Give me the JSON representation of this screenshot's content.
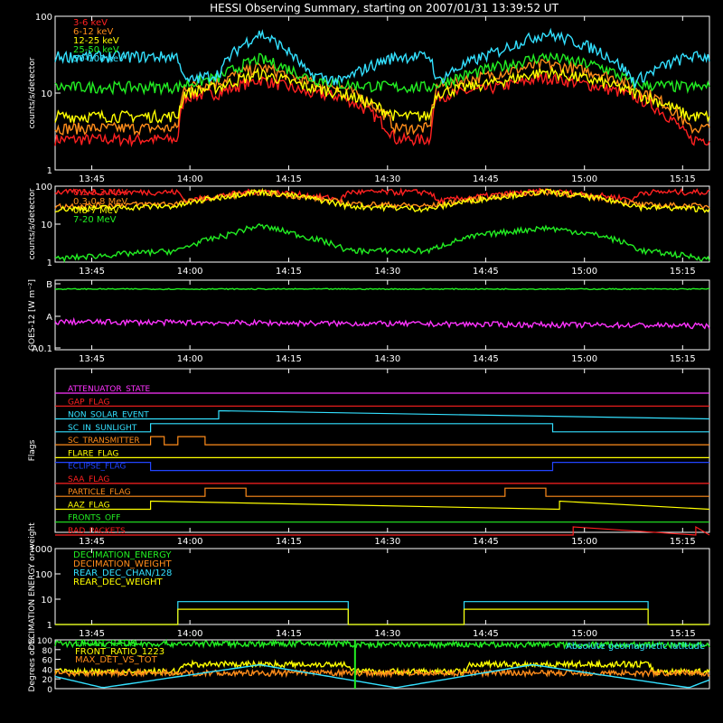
{
  "title": "HESSI Observing Summary, starting on 2007/01/31 13:39:52 UT",
  "colors": {
    "background": "#000000",
    "axes": "#ffffff",
    "red": "#ff2020",
    "orange": "#ff8c1a",
    "yellow": "#ffff00",
    "green": "#22ee22",
    "cyan": "#33e0ff",
    "magenta": "#ff33ff",
    "blue": "#2244ff"
  },
  "time_ticks": [
    "13:45",
    "14:00",
    "14:15",
    "14:30",
    "14:45",
    "15:00",
    "15:15"
  ],
  "chart_data": [
    {
      "id": "low-energy-rates",
      "type": "line",
      "ylabel": "counts/s/detector",
      "yscale": "log",
      "ylim": [
        1,
        100
      ],
      "y_tick_labels": [
        "1",
        "10",
        "100"
      ],
      "x_tick_labels": [
        "13:45",
        "14:00",
        "14:15",
        "14:30",
        "14:45",
        "15:00",
        "15:15"
      ],
      "xlim_minutes": [
        0,
        96
      ],
      "legend": [
        "3-6 keV",
        "6-12 keV",
        "12-25 keV",
        "25-50 keV",
        "50-100 keV"
      ],
      "legend_placement": "top-left",
      "series": [
        {
          "name": "3-6 keV",
          "color": "#ff2020",
          "x": [
            0,
            18,
            19,
            24,
            30,
            37,
            42,
            50,
            55,
            56,
            65,
            72,
            80,
            85,
            93,
            96
          ],
          "values": [
            2.5,
            2.5,
            9,
            10,
            15,
            10,
            9,
            2.5,
            2.5,
            9,
            12,
            16,
            12,
            9,
            2.5,
            2.5
          ]
        },
        {
          "name": "6-12 keV",
          "color": "#ff8c1a",
          "x": [
            0,
            18,
            19,
            24,
            30,
            37,
            42,
            50,
            55,
            56,
            65,
            72,
            80,
            85,
            93,
            96
          ],
          "values": [
            3.5,
            3.5,
            12,
            14,
            22,
            14,
            12,
            3.5,
            3.5,
            12,
            18,
            24,
            18,
            12,
            3.5,
            3.5
          ]
        },
        {
          "name": "12-25 keV",
          "color": "#ffff00",
          "x": [
            0,
            18,
            19,
            24,
            30,
            37,
            42,
            50,
            55,
            56,
            65,
            72,
            80,
            85,
            93,
            96
          ],
          "values": [
            5,
            5,
            10,
            12,
            18,
            12,
            10,
            5,
            5,
            10,
            14,
            19,
            14,
            10,
            5,
            5
          ]
        },
        {
          "name": "25-50 keV",
          "color": "#22ee22",
          "x": [
            0,
            18,
            19,
            24,
            30,
            37,
            42,
            50,
            55,
            56,
            65,
            72,
            80,
            85,
            93,
            96
          ],
          "values": [
            12,
            12,
            13,
            16,
            28,
            16,
            13,
            12,
            12,
            13,
            22,
            30,
            22,
            13,
            12,
            12
          ]
        },
        {
          "name": "50-100 keV",
          "color": "#33e0ff",
          "x": [
            0,
            18,
            19,
            24,
            30,
            37,
            42,
            50,
            55,
            56,
            65,
            72,
            80,
            85,
            93,
            96
          ],
          "values": [
            30,
            30,
            14,
            18,
            60,
            18,
            14,
            30,
            30,
            14,
            35,
            60,
            35,
            14,
            30,
            30
          ]
        }
      ]
    },
    {
      "id": "high-energy-rates",
      "type": "line",
      "ylabel": "counts/s/detector",
      "yscale": "log",
      "ylim": [
        1,
        100
      ],
      "y_tick_labels": [
        "1",
        "10",
        "100"
      ],
      "x_tick_labels": [
        "13:45",
        "14:00",
        "14:15",
        "14:30",
        "14:45",
        "15:00",
        "15:15"
      ],
      "xlim_minutes": [
        0,
        96
      ],
      "legend": [
        "0.1-0.3 MeV",
        "0.3-0.8 MeV",
        "0.8-7 MeV",
        "7-20 MeV"
      ],
      "legend_placement": "top-left",
      "series": [
        {
          "name": "0.1-0.3 MeV",
          "color": "#ff2020",
          "x": [
            0,
            18,
            19,
            30,
            42,
            43,
            55,
            56,
            72,
            85,
            86,
            96
          ],
          "values": [
            70,
            70,
            40,
            75,
            45,
            70,
            70,
            40,
            75,
            45,
            70,
            70
          ]
        },
        {
          "name": "0.3-0.8 MeV",
          "color": "#ff8c1a",
          "x": [
            0,
            18,
            30,
            43,
            55,
            72,
            86,
            96
          ],
          "values": [
            30,
            35,
            70,
            35,
            30,
            70,
            32,
            30
          ]
        },
        {
          "name": "0.8-7 MeV",
          "color": "#ffff00",
          "x": [
            0,
            18,
            30,
            43,
            55,
            72,
            86,
            96
          ],
          "values": [
            25,
            30,
            72,
            30,
            25,
            72,
            28,
            25
          ]
        },
        {
          "name": "7-20 MeV",
          "color": "#22ee22",
          "x": [
            0,
            18,
            25,
            30,
            36,
            43,
            55,
            62,
            72,
            80,
            86,
            96
          ],
          "values": [
            1.2,
            2,
            5,
            9,
            5,
            2,
            2,
            5,
            8,
            5,
            2,
            1.2
          ]
        }
      ]
    },
    {
      "id": "goes",
      "type": "line",
      "ylabel": "GOES-12 [W m⁻²]",
      "yscale": "log",
      "y_tick_labels": [
        "B",
        "A",
        "A0.1"
      ],
      "x_tick_labels": [
        "13:45",
        "14:00",
        "14:15",
        "14:30",
        "14:45",
        "15:00",
        "15:15"
      ],
      "xlim_minutes": [
        0,
        96
      ],
      "series": [
        {
          "name": "long",
          "color": "#22ee22",
          "x": [
            0,
            96
          ],
          "values": [
            0.8,
            0.8
          ]
        },
        {
          "name": "short",
          "color": "#ff33ff",
          "x": [
            0,
            96
          ],
          "values": [
            0.18,
            0.15
          ]
        }
      ]
    },
    {
      "id": "flags",
      "type": "line",
      "ylabel": "Flags",
      "x_tick_labels": [
        "13:45",
        "14:00",
        "14:15",
        "14:30",
        "14:45",
        "15:00",
        "15:15"
      ],
      "xlim_minutes": [
        0,
        96
      ],
      "series": [
        {
          "name": "ATTENUATOR_STATE",
          "color": "#ff33ff",
          "x": [
            0,
            96
          ],
          "values": [
            0,
            0
          ]
        },
        {
          "name": "GAP_FLAG",
          "color": "#ff2020",
          "x": [
            0,
            96
          ],
          "values": [
            0,
            0
          ]
        },
        {
          "name": "NON_SOLAR_EVENT",
          "color": "#33e0ff",
          "x": [
            0,
            24,
            24,
            96
          ],
          "values": [
            0,
            0,
            1,
            0
          ]
        },
        {
          "name": "SC_IN_SUNLIGHT",
          "color": "#33e0ff",
          "x": [
            0,
            14,
            14,
            73,
            73,
            96
          ],
          "values": [
            0,
            0,
            1,
            1,
            0,
            0
          ]
        },
        {
          "name": "SC_TRANSMITTER",
          "color": "#ff8c1a",
          "x": [
            0,
            14,
            14,
            16,
            16,
            18,
            18,
            22,
            22,
            96
          ],
          "values": [
            0,
            0,
            1,
            1,
            0,
            0,
            1,
            1,
            0,
            0
          ]
        },
        {
          "name": "FLARE_FLAG",
          "color": "#ffff00",
          "x": [
            0,
            96
          ],
          "values": [
            0,
            0
          ]
        },
        {
          "name": "ECLIPSE_FLAG",
          "color": "#2244ff",
          "x": [
            0,
            14,
            14,
            73,
            73,
            96
          ],
          "values": [
            1,
            1,
            0,
            0,
            1,
            1
          ]
        },
        {
          "name": "SAA_FLAG",
          "color": "#ff2020",
          "x": [
            0,
            96
          ],
          "values": [
            0,
            0
          ]
        },
        {
          "name": "PARTICLE_FLAG",
          "color": "#ff8c1a",
          "x": [
            0,
            22,
            22,
            28,
            28,
            66,
            66,
            72,
            72,
            96
          ],
          "values": [
            0,
            0,
            1,
            1,
            0,
            0,
            1,
            1,
            0,
            0
          ]
        },
        {
          "name": "AAZ_FLAG",
          "color": "#ffff00",
          "x": [
            0,
            14,
            14,
            74,
            74,
            96
          ],
          "values": [
            0,
            0,
            1,
            0,
            1,
            0
          ]
        },
        {
          "name": "FRONTS_OFF",
          "color": "#22ee22",
          "x": [
            0,
            96
          ],
          "values": [
            0,
            0
          ]
        },
        {
          "name": "BAD_PACKETS",
          "color": "#ff2020",
          "x": [
            0,
            76,
            76,
            94,
            94,
            96
          ],
          "values": [
            0,
            0,
            1,
            0,
            1,
            0
          ]
        }
      ]
    },
    {
      "id": "decimation",
      "type": "line",
      "ylabel": "DECIMATION ENERGY or weight",
      "yscale": "log",
      "ylim": [
        1,
        1000
      ],
      "y_tick_labels": [
        "1",
        "10",
        "100",
        "1000"
      ],
      "x_tick_labels": [
        "13:45",
        "14:00",
        "14:15",
        "14:30",
        "14:45",
        "15:00",
        "15:15"
      ],
      "xlim_minutes": [
        0,
        96
      ],
      "legend": [
        "DECIMATION_ENERGY",
        "DECIMATION_WEIGHT",
        "REAR_DEC_CHAN/128",
        "REAR_DEC_WEIGHT"
      ],
      "legend_placement": "top-left",
      "series": [
        {
          "name": "DECIMATION_ENERGY",
          "color": "#22ee22",
          "x": [
            0,
            96
          ],
          "values": [
            0,
            0
          ]
        },
        {
          "name": "DECIMATION_WEIGHT",
          "color": "#ff8c1a",
          "x": [
            0,
            96
          ],
          "values": [
            0,
            0
          ]
        },
        {
          "name": "REAR_DEC_CHAN/128",
          "color": "#33e0ff",
          "x": [
            0,
            18,
            18,
            43,
            43,
            60,
            60,
            87,
            87,
            96
          ],
          "values": [
            0,
            0,
            8,
            8,
            0,
            0,
            8,
            8,
            0,
            0
          ]
        },
        {
          "name": "REAR_DEC_WEIGHT",
          "color": "#ffff00",
          "x": [
            0,
            18,
            18,
            43,
            43,
            60,
            60,
            87,
            87,
            96
          ],
          "values": [
            0,
            0,
            4,
            4,
            0,
            0,
            4,
            4,
            0,
            0
          ]
        }
      ]
    },
    {
      "id": "ratios",
      "type": "line",
      "ylabel": "Degrees or %",
      "ylim": [
        0,
        100
      ],
      "y_tick_labels": [
        "0",
        "20",
        "40",
        "60",
        "80",
        "100"
      ],
      "xlim_minutes": [
        0,
        96
      ],
      "legend": [
        "FRONT_RATIO",
        "FRONT_RATIO_1223",
        "MAX_DET_VS_TOT"
      ],
      "legend_placement": "top-left",
      "annotation": "Absolute geomagnetic latitude",
      "series": [
        {
          "name": "FRONT_RATIO",
          "color": "#22ee22",
          "x": [
            0,
            43,
            44,
            96
          ],
          "values": [
            92,
            92,
            90,
            90
          ]
        },
        {
          "name": "FRONT_RATIO_1223",
          "color": "#ffff00",
          "x": [
            0,
            18,
            19,
            43,
            44,
            60,
            61,
            87,
            88,
            96
          ],
          "values": [
            35,
            35,
            50,
            50,
            35,
            35,
            50,
            50,
            35,
            35
          ]
        },
        {
          "name": "MAX_DET_VS_TOT",
          "color": "#ff8c1a",
          "x": [
            0,
            96
          ],
          "values": [
            32,
            32
          ]
        },
        {
          "name": "Absolute geomagnetic latitude",
          "color": "#33e0ff",
          "x": [
            0,
            7,
            30,
            50,
            70,
            93,
            96
          ],
          "values": [
            25,
            2,
            49,
            2,
            49,
            2,
            18
          ]
        }
      ]
    }
  ]
}
